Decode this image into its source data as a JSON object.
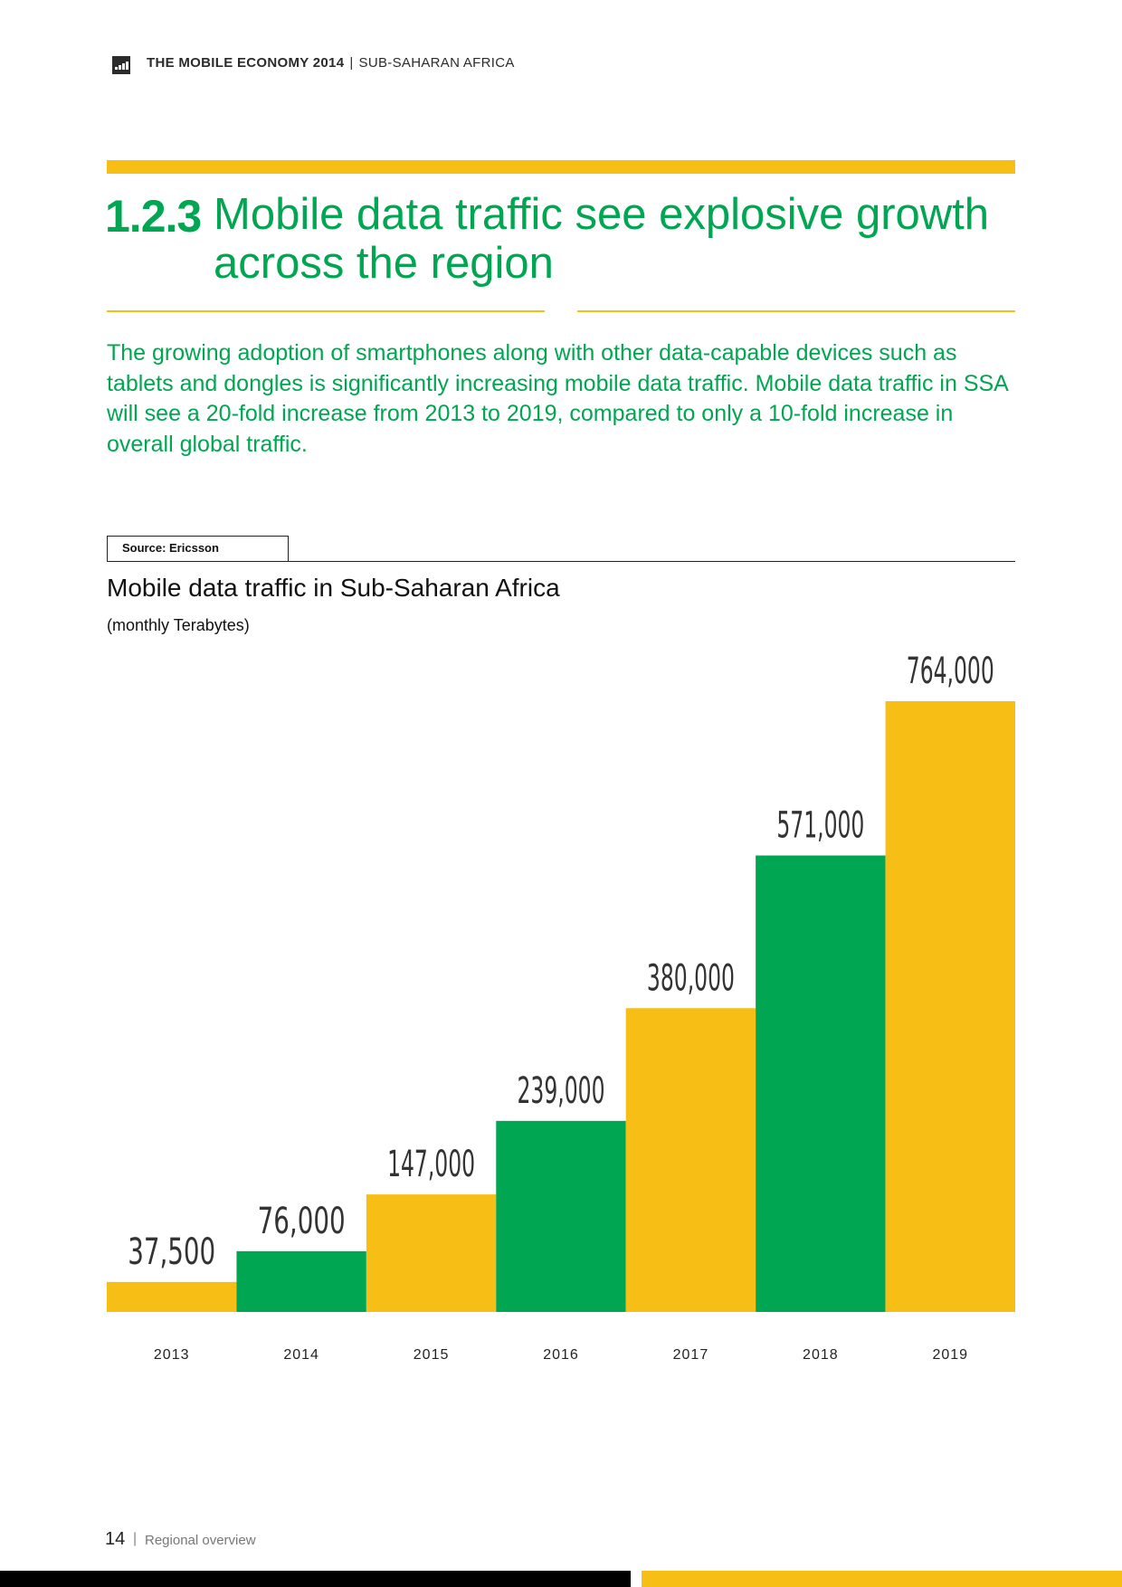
{
  "header": {
    "publication": "THE MOBILE ECONOMY 2014",
    "separator": "|",
    "region": "SUB-SAHARAN AFRICA"
  },
  "section": {
    "number": "1.2.3",
    "title": "Mobile data traffic see explosive growth across the region"
  },
  "intro": "The growing adoption of smartphones along with other data-capable devices such as tablets and dongles is significantly increasing mobile data traffic. Mobile data traffic in SSA will see a 20-fold increase from 2013 to 2019, compared to only a 10-fold increase in overall global traffic.",
  "source": "Source: Ericsson",
  "colors": {
    "yellow": "#f7be16",
    "green": "#00a651",
    "text": "#222222"
  },
  "chart_data": {
    "type": "bar",
    "title": "Mobile data traffic in Sub-Saharan Africa",
    "subtitle": "(monthly Terabytes)",
    "xlabel": "",
    "ylabel": "",
    "categories": [
      "2013",
      "2014",
      "2015",
      "2016",
      "2017",
      "2018",
      "2019"
    ],
    "values": [
      37500,
      76000,
      147000,
      239000,
      380000,
      571000,
      764000
    ],
    "value_labels": [
      "37,500",
      "76,000",
      "147,000",
      "239,000",
      "380,000",
      "571,000",
      "764,000"
    ],
    "bar_colors": [
      "#f7be16",
      "#00a651",
      "#f7be16",
      "#00a651",
      "#f7be16",
      "#00a651",
      "#f7be16"
    ],
    "ylim": [
      0,
      764000
    ],
    "grid": false,
    "legend": "none"
  },
  "footer": {
    "page_number": "14",
    "separator": "|",
    "label": "Regional overview"
  }
}
